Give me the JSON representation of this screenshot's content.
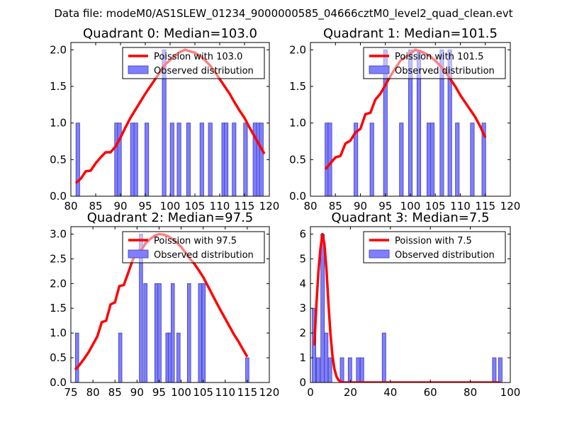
{
  "suptitle": "Data file: modeM0/AS1SLEW_01234_9000000585_04666cztM0_level2_quad_clean.evt",
  "colors": {
    "line": "#ff0000",
    "bar_fill": "#7f7fff",
    "bar_edge": "#3b3bb5",
    "axis": "#000000",
    "legend_edge": "#000000"
  },
  "chart_data": [
    {
      "type": "bar",
      "title": "Quadrant 0: Median=103.0",
      "legend_line_label": "Poission with 103.0",
      "legend_bar_label": "Observed distribution",
      "legend_position": "top-right",
      "xlim": [
        80,
        120
      ],
      "ylim": [
        0,
        2.1
      ],
      "xticks": [
        80,
        85,
        90,
        95,
        100,
        105,
        110,
        115,
        120
      ],
      "yticks": [
        0.0,
        0.5,
        1.0,
        1.5,
        2.0
      ],
      "ytick_labels": [
        "0.0",
        "0.5",
        "1.0",
        "1.5",
        "2.0"
      ],
      "bar_width": 0.75,
      "bars": [
        [
          81.4,
          1
        ],
        [
          89.2,
          1
        ],
        [
          89.8,
          1
        ],
        [
          92.4,
          1
        ],
        [
          93.1,
          1
        ],
        [
          95.3,
          1
        ],
        [
          98.8,
          2
        ],
        [
          100.4,
          1
        ],
        [
          101.8,
          1
        ],
        [
          103.7,
          1
        ],
        [
          106.4,
          1
        ],
        [
          108.1,
          1
        ],
        [
          110.8,
          1
        ],
        [
          111.3,
          1
        ],
        [
          112.9,
          1
        ],
        [
          115.2,
          1
        ],
        [
          117.1,
          1
        ],
        [
          117.8,
          1
        ],
        [
          118.4,
          1
        ]
      ],
      "poisson_x": [
        81,
        82,
        83,
        84,
        85,
        86,
        87,
        88,
        89,
        90,
        91,
        92,
        93,
        94,
        95,
        96,
        97,
        98,
        99,
        100,
        101,
        102,
        103,
        104,
        105,
        106,
        107,
        108,
        109,
        110,
        111,
        112,
        113,
        114,
        115,
        116,
        117,
        118,
        119
      ],
      "poisson_y": [
        0.18,
        0.24,
        0.34,
        0.35,
        0.45,
        0.53,
        0.6,
        0.6,
        0.68,
        0.8,
        0.94,
        1.07,
        1.18,
        1.29,
        1.4,
        1.5,
        1.6,
        1.7,
        1.8,
        1.86,
        1.92,
        1.97,
        2.0,
        1.98,
        1.96,
        1.92,
        1.86,
        1.79,
        1.7,
        1.6,
        1.5,
        1.4,
        1.28,
        1.17,
        1.07,
        0.94,
        0.82,
        0.7,
        0.58
      ]
    },
    {
      "type": "bar",
      "title": "Quadrant 1: Median=101.5",
      "legend_line_label": "Poission with 101.5",
      "legend_bar_label": "Observed distribution",
      "legend_position": "top-right",
      "xlim": [
        80,
        120
      ],
      "ylim": [
        0,
        2.1
      ],
      "xticks": [
        80,
        85,
        90,
        95,
        100,
        105,
        110,
        115,
        120
      ],
      "yticks": [
        0.0,
        0.5,
        1.0,
        1.5,
        2.0
      ],
      "ytick_labels": [
        "0.0",
        "0.5",
        "1.0",
        "1.5",
        "2.0"
      ],
      "bar_width": 0.75,
      "bars": [
        [
          83.3,
          1
        ],
        [
          83.9,
          1
        ],
        [
          89.1,
          1
        ],
        [
          92.3,
          1
        ],
        [
          95.0,
          2
        ],
        [
          98.2,
          1
        ],
        [
          100.0,
          2
        ],
        [
          101.7,
          2
        ],
        [
          103.7,
          1
        ],
        [
          104.4,
          1
        ],
        [
          106.3,
          2
        ],
        [
          107.9,
          2
        ],
        [
          109.4,
          1
        ],
        [
          112.4,
          1
        ],
        [
          114.7,
          1
        ]
      ],
      "poisson_x": [
        83,
        84,
        85,
        86,
        87,
        88,
        89,
        90,
        91,
        92,
        93,
        94,
        95,
        96,
        97,
        98,
        99,
        100,
        101,
        102,
        103,
        104,
        105,
        106,
        107,
        108,
        109,
        110,
        111,
        112,
        113,
        114,
        115
      ],
      "poisson_y": [
        0.37,
        0.45,
        0.53,
        0.55,
        0.72,
        0.76,
        0.87,
        0.92,
        1.12,
        1.14,
        1.32,
        1.4,
        1.52,
        1.64,
        1.75,
        1.85,
        1.9,
        1.95,
        2.0,
        1.98,
        1.95,
        1.91,
        1.85,
        1.78,
        1.7,
        1.6,
        1.5,
        1.38,
        1.28,
        1.18,
        1.08,
        0.95,
        0.8
      ]
    },
    {
      "type": "bar",
      "title": "Quadrant 2: Median=97.5",
      "legend_line_label": "Poission with 97.5",
      "legend_bar_label": "Observed distribution",
      "legend_position": "top-right",
      "xlim": [
        75,
        120
      ],
      "ylim": [
        0,
        3.15
      ],
      "xticks": [
        75,
        80,
        85,
        90,
        95,
        100,
        105,
        110,
        115,
        120
      ],
      "yticks": [
        0.0,
        0.5,
        1.0,
        1.5,
        2.0,
        2.5,
        3.0
      ],
      "ytick_labels": [
        "0.0",
        "0.5",
        "1.0",
        "1.5",
        "2.0",
        "2.5",
        "3.0"
      ],
      "bar_width": 0.75,
      "bars": [
        [
          76.4,
          1
        ],
        [
          86.2,
          1
        ],
        [
          90.9,
          3
        ],
        [
          91.9,
          2
        ],
        [
          94.4,
          2
        ],
        [
          95.1,
          2
        ],
        [
          96.9,
          1
        ],
        [
          97.5,
          1
        ],
        [
          98.1,
          2
        ],
        [
          99.4,
          1
        ],
        [
          101.8,
          2
        ],
        [
          104.3,
          2
        ],
        [
          105.1,
          2
        ],
        [
          115.0,
          0.5
        ]
      ],
      "poisson_x": [
        76,
        77,
        78,
        79,
        80,
        81,
        82,
        83,
        84,
        85,
        86,
        87,
        88,
        89,
        90,
        91,
        92,
        93,
        94,
        95,
        96,
        97,
        98,
        99,
        100,
        101,
        102,
        103,
        104,
        105,
        106,
        107,
        108,
        109,
        110,
        111,
        112,
        113,
        114,
        115
      ],
      "poisson_y": [
        0.26,
        0.36,
        0.48,
        0.61,
        0.77,
        0.93,
        1.22,
        1.25,
        1.58,
        1.62,
        1.95,
        1.97,
        2.22,
        2.47,
        2.65,
        2.68,
        2.82,
        2.9,
        2.97,
        3.0,
        2.99,
        2.96,
        2.9,
        2.83,
        2.74,
        2.62,
        2.5,
        2.4,
        2.27,
        2.13,
        1.96,
        1.79,
        1.62,
        1.45,
        1.29,
        1.13,
        0.97,
        0.83,
        0.67,
        0.52
      ]
    },
    {
      "type": "bar",
      "title": "Quadrant 3: Median=7.5",
      "legend_line_label": "Poission with 7.5",
      "legend_bar_label": "Observed distribution",
      "legend_position": "top-right",
      "xlim": [
        0,
        100
      ],
      "ylim": [
        0,
        6.3
      ],
      "xticks": [
        0,
        20,
        40,
        60,
        80,
        100
      ],
      "yticks": [
        0,
        1,
        2,
        3,
        4,
        5,
        6
      ],
      "ytick_labels": [
        "0",
        "1",
        "2",
        "3",
        "4",
        "5",
        "6"
      ],
      "bar_width": 1.8,
      "bars": [
        [
          1.8,
          3
        ],
        [
          3.9,
          1
        ],
        [
          6.1,
          6
        ],
        [
          7.9,
          2
        ],
        [
          9.8,
          1
        ],
        [
          15.8,
          1
        ],
        [
          19.8,
          1
        ],
        [
          23.9,
          1
        ],
        [
          25.8,
          1
        ],
        [
          36.8,
          2
        ],
        [
          92.0,
          1
        ],
        [
          95.0,
          1
        ]
      ],
      "poisson_x": [
        2,
        3,
        4,
        5,
        6,
        7,
        8,
        9,
        10,
        11,
        12,
        13,
        14,
        15,
        16,
        17,
        18,
        19,
        20,
        30,
        40,
        50,
        60,
        70,
        80,
        90,
        95
      ],
      "poisson_y": [
        1.5,
        3.2,
        4.5,
        5.4,
        6.0,
        5.6,
        4.6,
        3.2,
        2.0,
        1.1,
        0.55,
        0.25,
        0.1,
        0.04,
        0.01,
        0,
        0,
        0,
        0,
        0,
        0,
        0,
        0,
        0,
        0,
        0,
        0
      ]
    }
  ]
}
